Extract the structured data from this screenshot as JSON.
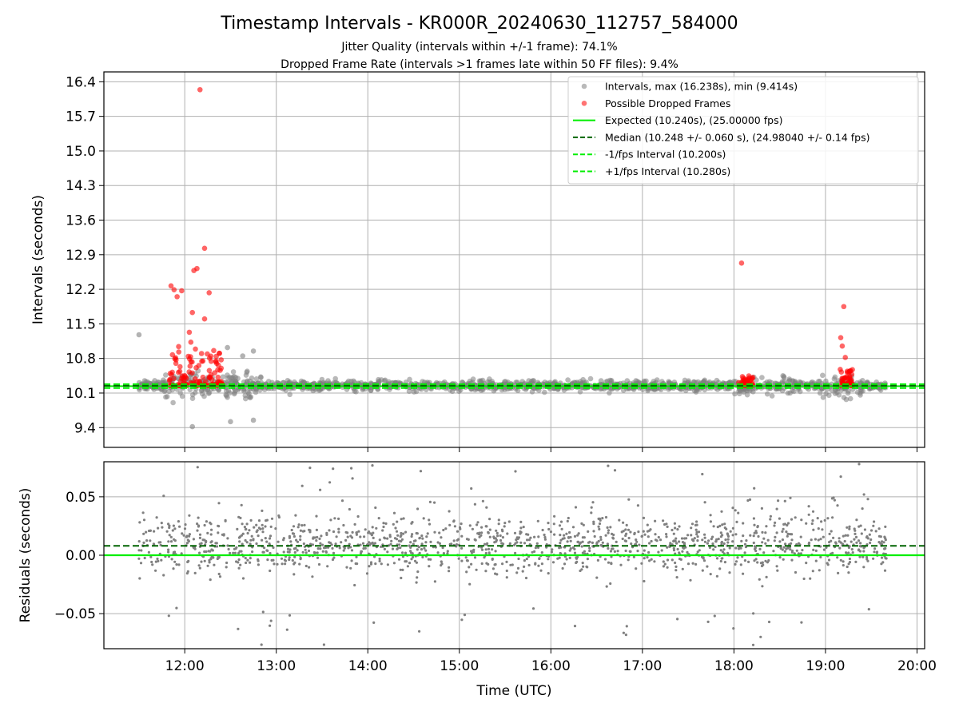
{
  "title": "Timestamp Intervals - KR000R_20240630_112757_584000",
  "subtitle_lines": [
    "Jitter Quality (intervals within +/-1 frame): 74.1%",
    "Dropped Frame Rate (intervals >1 frames late within 50 FF files): 9.4%"
  ],
  "colors": {
    "intervals": "#808080",
    "dropped": "#ff0000",
    "expected": "#00ee00",
    "median": "#006400",
    "fps_interval": "#00ee00",
    "grid": "#b0b0b0"
  },
  "chart_data": [
    {
      "type": "scatter",
      "panel": "intervals",
      "ylabel": "Intervals (seconds)",
      "xlim": [
        "11:07",
        "20:05"
      ],
      "ylim": [
        9.0,
        16.6
      ],
      "yticks": [
        "16.4",
        "15.7",
        "15.0",
        "14.3",
        "13.6",
        "12.9",
        "12.2",
        "11.5",
        "10.8",
        "10.1",
        "9.4"
      ],
      "grid": true,
      "legend_placement": "top-right",
      "legend": [
        "Intervals, max (16.238s), min (9.414s)",
        "Possible Dropped Frames",
        "Expected (10.240s), (25.00000 fps)",
        "Median (10.248 +/- 0.060 s), (24.98040 +/- 0.14 fps)",
        "-1/fps Interval (10.200s)",
        "+1/fps Interval (10.280s)"
      ],
      "reference_lines": {
        "expected": 10.24,
        "median": 10.248,
        "minus_1fps": 10.2,
        "plus_1fps": 10.28
      },
      "series": [
        {
          "name": "Intervals, max (16.238s), min (9.414s)",
          "description": "about 1800 gray points between 11:30 and 19:40 clustered at 10.1-10.5 s",
          "x_range": [
            "11:30",
            "19:40"
          ],
          "typical_range": [
            10.05,
            10.45
          ],
          "notable_points": [
            {
              "x": "11:30",
              "y": 11.28
            },
            {
              "x": "12:28",
              "y": 11.02
            },
            {
              "x": "12:45",
              "y": 10.95
            },
            {
              "x": "12:38",
              "y": 10.85
            },
            {
              "x": "12:05",
              "y": 9.42
            },
            {
              "x": "12:30",
              "y": 9.52
            },
            {
              "x": "12:45",
              "y": 9.55
            }
          ]
        },
        {
          "name": "Possible Dropped Frames",
          "points": [
            {
              "x": "12:10",
              "y": 16.24
            },
            {
              "x": "12:13",
              "y": 13.03
            },
            {
              "x": "12:08",
              "y": 12.62
            },
            {
              "x": "12:06",
              "y": 12.58
            },
            {
              "x": "11:51",
              "y": 12.27
            },
            {
              "x": "11:53",
              "y": 12.19
            },
            {
              "x": "11:58",
              "y": 12.17
            },
            {
              "x": "12:16",
              "y": 12.13
            },
            {
              "x": "11:55",
              "y": 12.05
            },
            {
              "x": "12:05",
              "y": 11.73
            },
            {
              "x": "12:13",
              "y": 11.6
            },
            {
              "x": "12:03",
              "y": 11.33
            },
            {
              "x": "12:04",
              "y": 11.13
            },
            {
              "x": "11:56",
              "y": 11.04
            },
            {
              "x": "12:07",
              "y": 10.99
            },
            {
              "x": "12:11",
              "y": 10.9
            },
            {
              "x": "12:19",
              "y": 10.96
            },
            {
              "x": "18:05",
              "y": 12.73
            },
            {
              "x": "19:12",
              "y": 11.85
            },
            {
              "x": "19:10",
              "y": 11.22
            },
            {
              "x": "19:11",
              "y": 11.05
            },
            {
              "x": "19:13",
              "y": 10.82
            }
          ],
          "clusters": [
            {
              "x_range": [
                "11:50",
                "12:25"
              ],
              "y_range": [
                10.25,
                10.95
              ]
            },
            {
              "x_range": [
                "18:03",
                "18:13"
              ],
              "y_range": [
                10.25,
                10.45
              ]
            },
            {
              "x_range": [
                "19:09",
                "19:18"
              ],
              "y_range": [
                10.25,
                10.6
              ]
            }
          ]
        }
      ]
    },
    {
      "type": "scatter",
      "panel": "residuals",
      "xlabel": "Time (UTC)",
      "ylabel": "Residuals (seconds)",
      "xlim": [
        "11:07",
        "20:05"
      ],
      "ylim": [
        -0.08,
        0.08
      ],
      "xticks": [
        "12:00",
        "13:00",
        "14:00",
        "15:00",
        "16:00",
        "17:00",
        "18:00",
        "19:00",
        "20:00"
      ],
      "yticks": [
        "0.05",
        "0.00",
        "−0.05"
      ],
      "grid": true,
      "reference_lines": {
        "zero": 0.0,
        "median_offset": 0.008
      },
      "series": [
        {
          "description": "about 1800 gray points between 11:30 and 19:40",
          "x_range": [
            "11:30",
            "19:40"
          ],
          "typical_range": [
            -0.04,
            0.05
          ]
        }
      ]
    }
  ]
}
